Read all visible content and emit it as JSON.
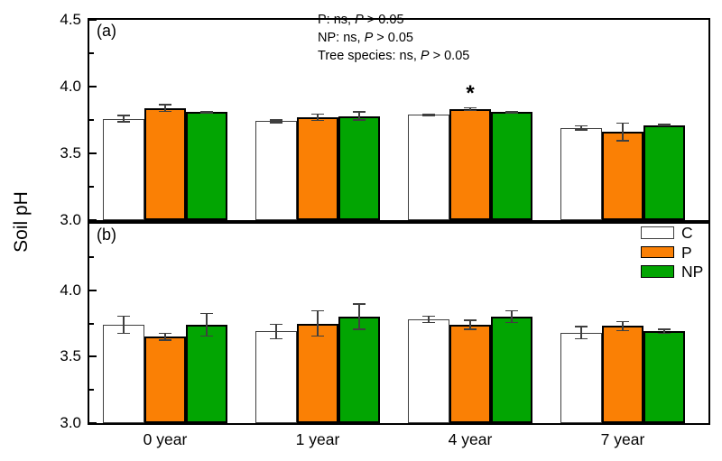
{
  "figure": {
    "ylabel": "Soil pH"
  },
  "legend": {
    "entries": [
      {
        "label": "C",
        "color": "#FFFFFF"
      },
      {
        "label": "P",
        "color": "#FA8005"
      },
      {
        "label": "NP",
        "color": "#02A502"
      }
    ]
  },
  "stats_annotation": {
    "lines": [
      {
        "pre": "P: ns, ",
        "italic": "P",
        "post": " > 0.05"
      },
      {
        "pre": "NP: ns, ",
        "italic": "P",
        "post": " > 0.05"
      },
      {
        "pre": "Tree species: ns, ",
        "italic": "P",
        "post": " > 0.05"
      }
    ]
  },
  "chart_data": [
    {
      "type": "bar",
      "panel_label": "(a)",
      "categories": [
        "0 year",
        "1 year",
        "4 year",
        "7 year"
      ],
      "series": [
        {
          "name": "C",
          "color": "#FFFFFF",
          "values": [
            3.76,
            3.74,
            3.79,
            3.69
          ],
          "errors": [
            0.03,
            0.015,
            0.01,
            0.02
          ]
        },
        {
          "name": "P",
          "color": "#FA8005",
          "values": [
            3.84,
            3.77,
            3.83,
            3.66
          ],
          "errors": [
            0.03,
            0.03,
            0.015,
            0.07
          ]
        },
        {
          "name": "NP",
          "color": "#02A502",
          "values": [
            3.81,
            3.78,
            3.81,
            3.71
          ],
          "errors": [
            0.01,
            0.035,
            0.01,
            0.01
          ]
        }
      ],
      "ylim": [
        3.0,
        4.5
      ],
      "yticks": [
        4.5,
        4.0,
        3.5,
        3.0
      ],
      "yticks_minor": [
        4.25,
        3.75,
        3.25
      ],
      "grid": false,
      "significance": [
        {
          "category_index": 2,
          "series": "P",
          "symbol": "*"
        }
      ]
    },
    {
      "type": "bar",
      "panel_label": "(b)",
      "categories": [
        "0 year",
        "1 year",
        "4 year",
        "7 year"
      ],
      "series": [
        {
          "name": "C",
          "color": "#FFFFFF",
          "values": [
            3.74,
            3.69,
            3.78,
            3.68
          ],
          "errors": [
            0.07,
            0.06,
            0.03,
            0.05
          ]
        },
        {
          "name": "P",
          "color": "#FA8005",
          "values": [
            3.65,
            3.75,
            3.74,
            3.73
          ],
          "errors": [
            0.03,
            0.1,
            0.04,
            0.04
          ]
        },
        {
          "name": "NP",
          "color": "#02A502",
          "values": [
            3.74,
            3.8,
            3.8,
            3.69
          ],
          "errors": [
            0.09,
            0.1,
            0.05,
            0.02
          ]
        }
      ],
      "ylim": [
        3.0,
        4.5
      ],
      "yticks": [
        4.0,
        3.5,
        3.0
      ],
      "yticks_minor": [
        4.25,
        3.75,
        3.25
      ],
      "grid": false,
      "significance": []
    }
  ]
}
